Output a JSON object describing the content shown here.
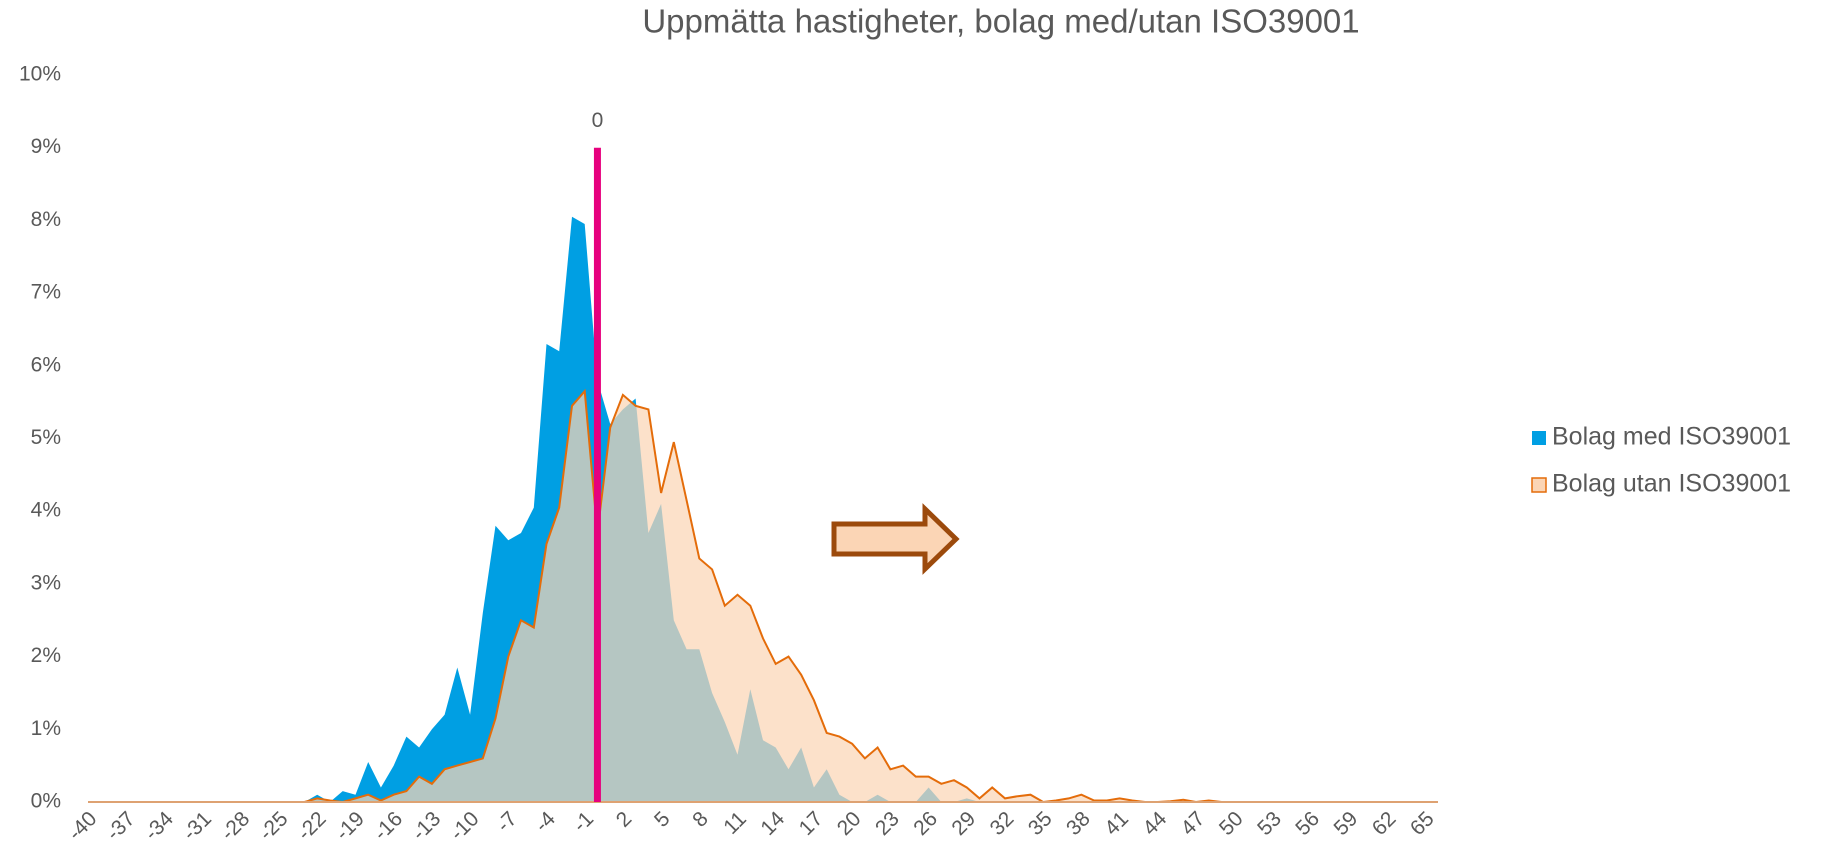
{
  "chart_data": {
    "type": "area",
    "title": "Uppmätta hastigheter, bolag med/utan ISO39001",
    "categories": [
      -40,
      null,
      null,
      -37,
      null,
      null,
      -34,
      null,
      null,
      -31,
      null,
      null,
      -28,
      null,
      null,
      -25,
      null,
      null,
      -22,
      null,
      null,
      -19,
      null,
      null,
      -16,
      null,
      null,
      -13,
      null,
      null,
      -10,
      null,
      null,
      -7,
      null,
      null,
      -4,
      null,
      null,
      -1,
      null,
      null,
      2,
      null,
      null,
      5,
      null,
      null,
      8,
      null,
      null,
      11,
      null,
      null,
      14,
      null,
      null,
      17,
      null,
      null,
      20,
      null,
      null,
      23,
      null,
      null,
      26,
      null,
      null,
      29,
      null,
      null,
      32,
      null,
      null,
      35,
      null,
      null,
      38,
      null,
      null,
      41,
      null,
      null,
      44,
      null,
      null,
      47,
      null,
      null,
      50,
      null,
      null,
      53,
      null,
      null,
      56,
      null,
      null,
      59,
      null,
      null,
      62,
      null,
      null,
      65,
      null
    ],
    "series": [
      {
        "name": "Bolag med ISO39001",
        "color": "#009fe3",
        "values": [
          0,
          0,
          0,
          0,
          0,
          0,
          0,
          0,
          0,
          0,
          0,
          0,
          0,
          0,
          0,
          0,
          0,
          0,
          0.1,
          0,
          0.15,
          0.1,
          0.55,
          0.2,
          0.5,
          0.9,
          0.75,
          1.0,
          1.2,
          1.85,
          1.2,
          2.6,
          3.8,
          3.6,
          3.7,
          4.05,
          6.3,
          6.2,
          8.05,
          7.95,
          5.8,
          5.2,
          5.4,
          5.55,
          3.7,
          4.1,
          2.5,
          2.1,
          2.1,
          1.5,
          1.1,
          0.65,
          1.55,
          0.85,
          0.75,
          0.45,
          0.75,
          0.2,
          0.45,
          0.1,
          0,
          0,
          0.1,
          0,
          0,
          0,
          0.2,
          0,
          0,
          0.05,
          0,
          0,
          0,
          0,
          0,
          0,
          0,
          0,
          0,
          0,
          0,
          0,
          0,
          0,
          0,
          0,
          0,
          0,
          0,
          0,
          0,
          0,
          0,
          0,
          0,
          0,
          0,
          0,
          0,
          0,
          0,
          0,
          0,
          0,
          0,
          0,
          0
        ]
      },
      {
        "name": "Bolag utan ISO39001",
        "color": "#e46c0a",
        "values": [
          0,
          0,
          0,
          0,
          0,
          0,
          0,
          0,
          0,
          0,
          0,
          0,
          0,
          0,
          0,
          0,
          0,
          0,
          0.05,
          0.02,
          0,
          0.05,
          0.1,
          0.02,
          0.1,
          0.15,
          0.35,
          0.25,
          0.45,
          0.5,
          0.55,
          0.6,
          1.15,
          2.0,
          2.5,
          2.4,
          3.55,
          4.05,
          5.45,
          5.65,
          3.7,
          5.15,
          5.6,
          5.45,
          5.4,
          4.25,
          4.95,
          4.15,
          3.35,
          3.2,
          2.7,
          2.85,
          2.7,
          2.25,
          1.9,
          2.0,
          1.75,
          1.4,
          0.95,
          0.9,
          0.8,
          0.6,
          0.75,
          0.45,
          0.5,
          0.35,
          0.35,
          0.25,
          0.3,
          0.2,
          0.05,
          0.2,
          0.05,
          0.08,
          0.1,
          0,
          0.02,
          0.05,
          0.1,
          0.02,
          0.02,
          0.05,
          0.02,
          0,
          0,
          0.01,
          0.03,
          0,
          0.02,
          0,
          0,
          0,
          0,
          0,
          0,
          0,
          0,
          0,
          0,
          0,
          0,
          0,
          0,
          0,
          0,
          0,
          0
        ]
      }
    ],
    "ylim": [
      0,
      10
    ],
    "yticks": [
      {
        "value": 0,
        "label": "0%"
      },
      {
        "value": 1,
        "label": "1%"
      },
      {
        "value": 2,
        "label": "2%"
      },
      {
        "value": 3,
        "label": "3%"
      },
      {
        "value": 4,
        "label": "4%"
      },
      {
        "value": 5,
        "label": "5%"
      },
      {
        "value": 6,
        "label": "6%"
      },
      {
        "value": 7,
        "label": "7%"
      },
      {
        "value": 8,
        "label": "8%"
      },
      {
        "value": 9,
        "label": "9%"
      },
      {
        "value": 10,
        "label": "10%"
      }
    ],
    "grid": false,
    "legend": "right",
    "annotations": [
      {
        "label": "0",
        "x": 0,
        "ytop": 9,
        "color": "#e6007e"
      }
    ]
  }
}
